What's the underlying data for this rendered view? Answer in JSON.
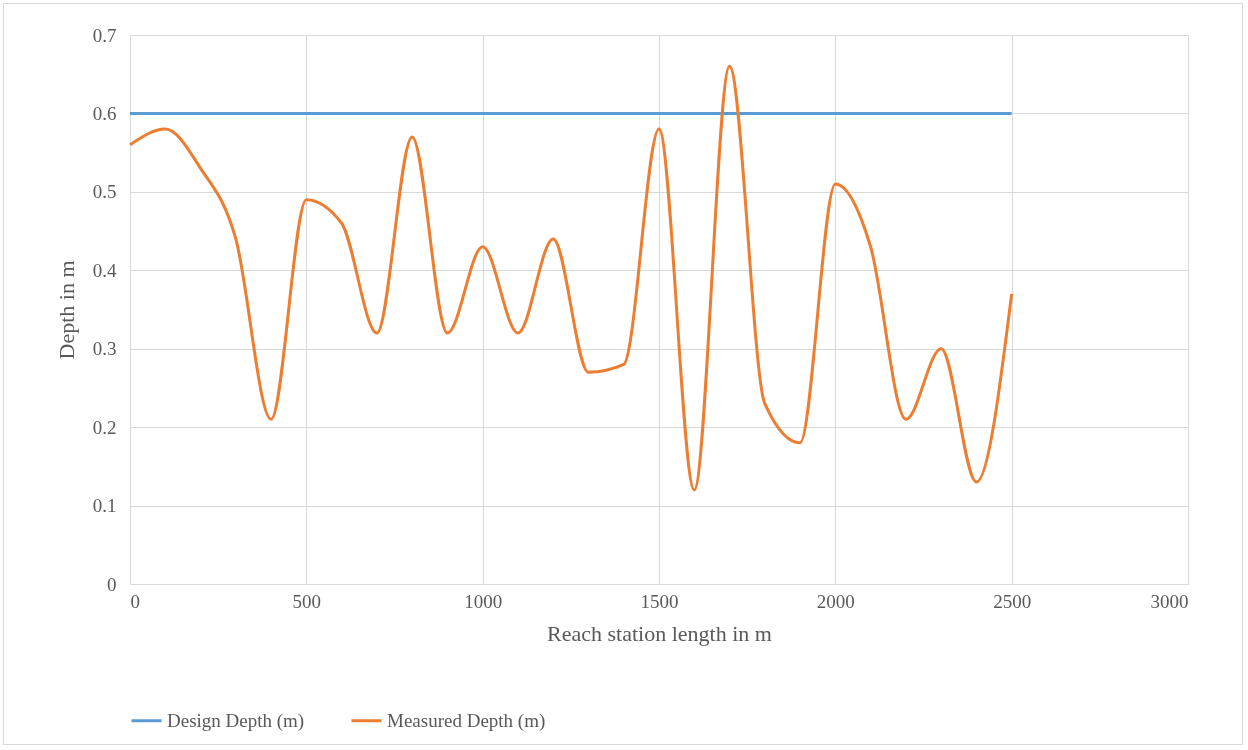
{
  "chart_data": {
    "type": "line",
    "xlabel": "Reach station length in m",
    "ylabel": "Depth in m",
    "x": [
      0,
      100,
      200,
      300,
      400,
      500,
      600,
      700,
      800,
      900,
      1000,
      1100,
      1200,
      1300,
      1400,
      1500,
      1600,
      1700,
      1800,
      1900,
      2000,
      2100,
      2200,
      2300,
      2400,
      2500
    ],
    "series": [
      {
        "name": "Design Depth (m)",
        "color": "#5b9bd5",
        "x": [
          0,
          2500
        ],
        "values": [
          0.6,
          0.6
        ]
      },
      {
        "name": "Measured Depth (m)",
        "color": "#ed7d31",
        "values": [
          0.56,
          0.58,
          0.53,
          0.44,
          0.21,
          0.49,
          0.46,
          0.32,
          0.57,
          0.32,
          0.43,
          0.32,
          0.44,
          0.27,
          0.28,
          0.58,
          0.12,
          0.66,
          0.23,
          0.18,
          0.51,
          0.43,
          0.21,
          0.3,
          0.13,
          0.37
        ]
      }
    ],
    "xlim": [
      0,
      3000
    ],
    "xticks": [
      0,
      500,
      1000,
      1500,
      2000,
      2500,
      3000
    ],
    "ylim": [
      0,
      0.7
    ],
    "yticks": [
      0,
      0.1,
      0.2,
      0.3,
      0.4,
      0.5,
      0.6,
      0.7
    ],
    "grid": true,
    "legend": "bottom",
    "marker": "none",
    "line_style": "solid"
  }
}
